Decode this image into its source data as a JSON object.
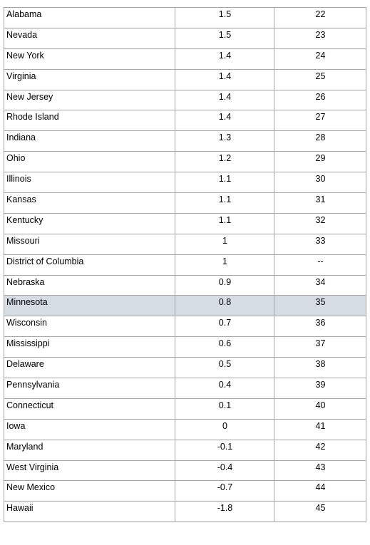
{
  "table": {
    "rows": [
      [
        "Alabama",
        "1.5",
        "22"
      ],
      [
        "Nevada",
        "1.5",
        "23"
      ],
      [
        "New York",
        "1.4",
        "24"
      ],
      [
        "Virginia",
        "1.4",
        "25"
      ],
      [
        "New Jersey",
        "1.4",
        "26"
      ],
      [
        "Rhode Island",
        "1.4",
        "27"
      ],
      [
        "Indiana",
        "1.3",
        "28"
      ],
      [
        "Ohio",
        "1.2",
        "29"
      ],
      [
        "Illinois",
        "1.1",
        "30"
      ],
      [
        "Kansas",
        "1.1",
        "31"
      ],
      [
        "Kentucky",
        "1.1",
        "32"
      ],
      [
        "Missouri",
        "1",
        "33"
      ],
      [
        "District of Columbia",
        "1",
        "--"
      ],
      [
        "Nebraska",
        "0.9",
        "34"
      ],
      [
        "Minnesota",
        "0.8",
        "35"
      ],
      [
        "Wisconsin",
        "0.7",
        "36"
      ],
      [
        "Mississippi",
        "0.6",
        "37"
      ],
      [
        "Delaware",
        "0.5",
        "38"
      ],
      [
        "Pennsylvania",
        "0.4",
        "39"
      ],
      [
        "Connecticut",
        "0.1",
        "40"
      ],
      [
        "Iowa",
        "0",
        "41"
      ],
      [
        "Maryland",
        "-0.1",
        "42"
      ],
      [
        "West Virginia",
        "-0.4",
        "43"
      ],
      [
        "New Mexico",
        "-0.7",
        "44"
      ],
      [
        "Hawaii",
        "-1.8",
        "45"
      ]
    ]
  }
}
